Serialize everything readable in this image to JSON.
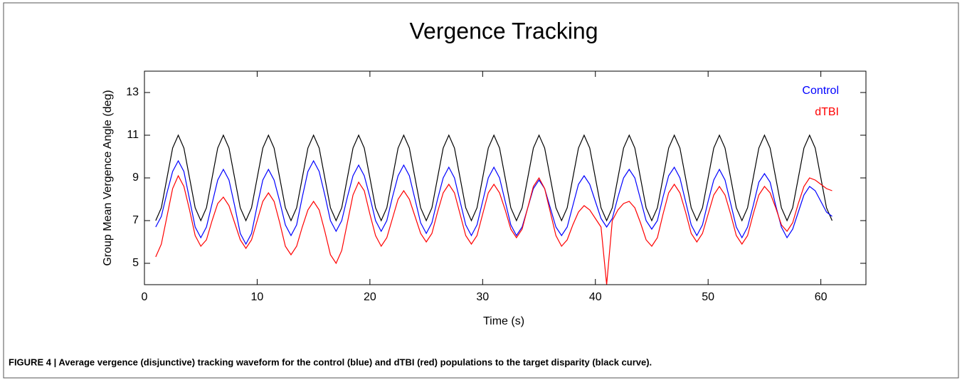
{
  "chart_data": {
    "type": "line",
    "title": "Vergence Tracking",
    "xlabel": "Time (s)",
    "ylabel": "Group Mean Vergence Angle (deg)",
    "xlim": [
      0,
      64
    ],
    "ylim": [
      4,
      14
    ],
    "xticks": [
      0,
      10,
      20,
      30,
      40,
      50,
      60
    ],
    "yticks": [
      5,
      7,
      9,
      11,
      13
    ],
    "legend": "upper right",
    "x": [
      1,
      1.5,
      2,
      2.5,
      3,
      3.5,
      4,
      4.5,
      5,
      5.5,
      6,
      6.5,
      7,
      7.5,
      8,
      8.5,
      9,
      9.5,
      10,
      10.5,
      11,
      11.5,
      12,
      12.5,
      13,
      13.5,
      14,
      14.5,
      15,
      15.5,
      16,
      16.5,
      17,
      17.5,
      18,
      18.5,
      19,
      19.5,
      20,
      20.5,
      21,
      21.5,
      22,
      22.5,
      23,
      23.5,
      24,
      24.5,
      25,
      25.5,
      26,
      26.5,
      27,
      27.5,
      28,
      28.5,
      29,
      29.5,
      30,
      30.5,
      31,
      31.5,
      32,
      32.5,
      33,
      33.5,
      34,
      34.5,
      35,
      35.5,
      36,
      36.5,
      37,
      37.5,
      38,
      38.5,
      39,
      39.5,
      40,
      40.5,
      41,
      41.5,
      42,
      42.5,
      43,
      43.5,
      44,
      44.5,
      45,
      45.5,
      46,
      46.5,
      47,
      47.5,
      48,
      48.5,
      49,
      49.5,
      50,
      50.5,
      51,
      51.5,
      52,
      52.5,
      53,
      53.5,
      54,
      54.5,
      55,
      55.5,
      56,
      56.5,
      57,
      57.5,
      58,
      58.5,
      59,
      59.5,
      60,
      60.5,
      61
    ],
    "series": [
      {
        "color": "#000000",
        "values": [
          7,
          7.6,
          9,
          10.4,
          11,
          10.4,
          9,
          7.6,
          7,
          7.6,
          9,
          10.4,
          11,
          10.4,
          9,
          7.6,
          7,
          7.6,
          9,
          10.4,
          11,
          10.4,
          9,
          7.6,
          7,
          7.6,
          9,
          10.4,
          11,
          10.4,
          9,
          7.6,
          7,
          7.6,
          9,
          10.4,
          11,
          10.4,
          9,
          7.6,
          7,
          7.6,
          9,
          10.4,
          11,
          10.4,
          9,
          7.6,
          7,
          7.6,
          9,
          10.4,
          11,
          10.4,
          9,
          7.6,
          7,
          7.6,
          9,
          10.4,
          11,
          10.4,
          9,
          7.6,
          7,
          7.6,
          9,
          10.4,
          11,
          10.4,
          9,
          7.6,
          7,
          7.6,
          9,
          10.4,
          11,
          10.4,
          9,
          7.6,
          7,
          7.6,
          9,
          10.4,
          11,
          10.4,
          9,
          7.6,
          7,
          7.6,
          9,
          10.4,
          11,
          10.4,
          9,
          7.6,
          7,
          7.6,
          9,
          10.4,
          11,
          10.4,
          9,
          7.6,
          7,
          7.6,
          9,
          10.4,
          11,
          10.4,
          9,
          7.6,
          7,
          7.6,
          9,
          10.4,
          11,
          10.4,
          9,
          7.6,
          7
        ]
      },
      {
        "name": "Control",
        "color": "#0000ff",
        "values": [
          6.7,
          7.2,
          8.3,
          9.3,
          9.8,
          9.3,
          8.0,
          6.7,
          6.2,
          6.7,
          7.8,
          8.9,
          9.4,
          8.9,
          7.7,
          6.4,
          5.9,
          6.4,
          7.7,
          8.9,
          9.4,
          8.9,
          7.9,
          6.8,
          6.3,
          6.8,
          8.1,
          9.3,
          9.8,
          9.3,
          8.2,
          7.0,
          6.5,
          7.0,
          8.1,
          9.1,
          9.6,
          9.1,
          8.1,
          7.0,
          6.5,
          7.0,
          8.1,
          9.1,
          9.6,
          9.1,
          8.0,
          6.9,
          6.4,
          6.9,
          8.0,
          9.0,
          9.5,
          9.0,
          7.9,
          6.8,
          6.3,
          6.8,
          7.9,
          9.0,
          9.5,
          9.0,
          7.9,
          6.8,
          6.3,
          6.7,
          7.6,
          8.5,
          8.9,
          8.5,
          7.6,
          6.7,
          6.3,
          6.7,
          7.7,
          8.7,
          9.1,
          8.7,
          7.9,
          7.1,
          6.7,
          7.1,
          8.1,
          9.0,
          9.4,
          9.0,
          8.0,
          7.0,
          6.6,
          7.0,
          8.1,
          9.1,
          9.5,
          9.0,
          7.9,
          6.8,
          6.3,
          6.8,
          7.9,
          8.9,
          9.4,
          8.9,
          7.8,
          6.7,
          6.2,
          6.7,
          7.7,
          8.8,
          9.2,
          8.8,
          7.7,
          6.7,
          6.2,
          6.6,
          7.4,
          8.2,
          8.6,
          8.4,
          7.9,
          7.4,
          7.2
        ]
      },
      {
        "name": "dTBI",
        "color": "#ff0000",
        "values": [
          5.3,
          5.9,
          7.2,
          8.5,
          9.1,
          8.6,
          7.5,
          6.3,
          5.8,
          6.1,
          7.0,
          7.8,
          8.1,
          7.7,
          6.9,
          6.1,
          5.7,
          6.1,
          7.0,
          7.9,
          8.3,
          7.9,
          6.9,
          5.8,
          5.4,
          5.8,
          6.7,
          7.5,
          7.9,
          7.5,
          6.5,
          5.4,
          5.0,
          5.6,
          6.9,
          8.2,
          8.8,
          8.4,
          7.3,
          6.3,
          5.8,
          6.2,
          7.1,
          8.0,
          8.4,
          8.0,
          7.2,
          6.4,
          6.0,
          6.4,
          7.4,
          8.3,
          8.7,
          8.3,
          7.3,
          6.3,
          5.9,
          6.3,
          7.3,
          8.3,
          8.7,
          8.3,
          7.5,
          6.6,
          6.2,
          6.6,
          7.6,
          8.6,
          9.0,
          8.5,
          7.4,
          6.3,
          5.8,
          6.1,
          6.8,
          7.4,
          7.7,
          7.5,
          7.1,
          6.7,
          4.0,
          7.0,
          7.5,
          7.8,
          7.9,
          7.6,
          6.9,
          6.1,
          5.8,
          6.2,
          7.3,
          8.3,
          8.7,
          8.3,
          7.4,
          6.4,
          6.0,
          6.4,
          7.3,
          8.2,
          8.6,
          8.2,
          7.3,
          6.3,
          5.9,
          6.3,
          7.3,
          8.2,
          8.6,
          8.3,
          7.6,
          6.8,
          6.5,
          6.9,
          7.8,
          8.6,
          9.0,
          8.9,
          8.7,
          8.5,
          8.4
        ]
      }
    ]
  },
  "caption": "FIGURE 4 | Average vergence (disjunctive) tracking waveform for the control (blue) and dTBI (red) populations to the target disparity (black curve)."
}
